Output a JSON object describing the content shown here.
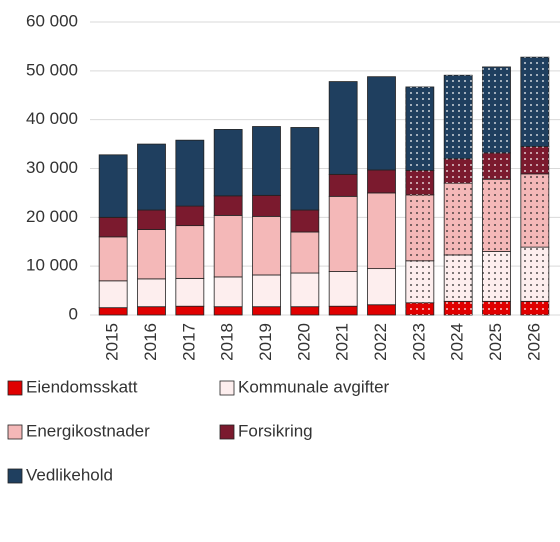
{
  "chart_data": {
    "type": "stacked_bar",
    "categories": [
      "2015",
      "2016",
      "2017",
      "2018",
      "2019",
      "2020",
      "2021",
      "2022",
      "2023",
      "2024",
      "2025",
      "2026"
    ],
    "series": [
      {
        "name": "Eiendomsskatt",
        "color": "#e00000",
        "values": [
          1500,
          1700,
          1800,
          1700,
          1700,
          1700,
          1800,
          2100,
          2500,
          2800,
          2800,
          2800
        ]
      },
      {
        "name": "Kommunale avgifter",
        "color": "#fdeeee",
        "values": [
          5500,
          5700,
          5700,
          6100,
          6500,
          6900,
          7100,
          7400,
          8600,
          9500,
          10200,
          11100
        ]
      },
      {
        "name": "Energikostnader",
        "color": "#f4b8b8",
        "values": [
          9000,
          10100,
          10800,
          12600,
          12000,
          8400,
          15400,
          15500,
          13500,
          14700,
          14800,
          15000
        ]
      },
      {
        "name": "Forsikring",
        "color": "#7b1a2e",
        "values": [
          4000,
          4000,
          4000,
          4000,
          4300,
          4500,
          4500,
          4700,
          5000,
          5000,
          5400,
          5600
        ]
      },
      {
        "name": "Vedlikehold",
        "color": "#1f3f5f",
        "values": [
          12800,
          13500,
          13500,
          13600,
          14100,
          16900,
          19000,
          19100,
          17100,
          17100,
          17600,
          18300
        ]
      }
    ],
    "dotted": [
      false,
      false,
      false,
      false,
      false,
      false,
      false,
      false,
      true,
      true,
      true,
      true
    ],
    "ylim": [
      0,
      60000
    ],
    "yticks": [
      {
        "value": 0,
        "label": "0"
      },
      {
        "value": 10000,
        "label": "10 000"
      },
      {
        "value": 20000,
        "label": "20 000"
      },
      {
        "value": 30000,
        "label": "30 000"
      },
      {
        "value": 40000,
        "label": "40 000"
      },
      {
        "value": 50000,
        "label": "50 000"
      },
      {
        "value": 60000,
        "label": "60 000"
      }
    ],
    "grid": true,
    "legend": "bottom"
  }
}
